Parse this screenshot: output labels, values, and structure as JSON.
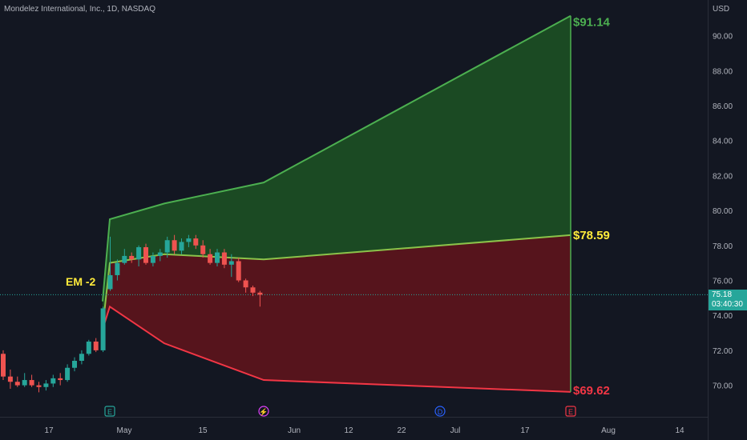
{
  "title": "Mondelez International, Inc., 1D, NASDAQ",
  "price_axis": {
    "unit": "USD",
    "ticks": [
      "70.00",
      "72.00",
      "74.00",
      "76.00",
      "78.00",
      "80.00",
      "82.00",
      "84.00",
      "86.00",
      "88.00",
      "90.00"
    ]
  },
  "time_axis": {
    "ticks": [
      "17",
      "May",
      "15",
      "Jun",
      "12",
      "22",
      "Jul",
      "17",
      "Aug",
      "14"
    ]
  },
  "last_price": {
    "value": "75.18",
    "countdown": "03:40:30",
    "color": "#26a69a"
  },
  "annotations": {
    "em_label": "EM -2",
    "upper_label": "$91.14",
    "mid_label": "$78.59",
    "lower_label": "$69.62"
  },
  "event_markers": [
    "E",
    "⚡",
    "D",
    "E"
  ],
  "colors": {
    "background": "#131722",
    "up": "#26a69a",
    "down": "#ef5350",
    "upper_band_line": "#4caf50",
    "upper_band_fill": "#1b4d24",
    "lower_band_line": "#f23645",
    "lower_band_fill": "#5a141c",
    "mid_line": "#8bc34a",
    "label_yellow": "#ffeb3b"
  },
  "chart_data": {
    "type": "candlestick",
    "symbol": "Mondelez International, Inc., 1D, NASDAQ",
    "yrange": [
      68,
      92
    ],
    "candles": [
      {
        "o": 71.8,
        "h": 72.0,
        "l": 70.3,
        "c": 70.5
      },
      {
        "o": 70.5,
        "h": 70.9,
        "l": 69.8,
        "c": 70.2
      },
      {
        "o": 70.2,
        "h": 70.5,
        "l": 69.9,
        "c": 70.0
      },
      {
        "o": 70.0,
        "h": 70.7,
        "l": 69.9,
        "c": 70.3
      },
      {
        "o": 70.3,
        "h": 70.6,
        "l": 69.9,
        "c": 70.0
      },
      {
        "o": 70.0,
        "h": 70.2,
        "l": 69.6,
        "c": 69.9
      },
      {
        "o": 69.9,
        "h": 70.3,
        "l": 69.7,
        "c": 70.1
      },
      {
        "o": 70.1,
        "h": 70.6,
        "l": 69.9,
        "c": 70.4
      },
      {
        "o": 70.4,
        "h": 70.7,
        "l": 70.0,
        "c": 70.3
      },
      {
        "o": 70.3,
        "h": 71.2,
        "l": 70.2,
        "c": 71.0
      },
      {
        "o": 71.0,
        "h": 71.6,
        "l": 70.8,
        "c": 71.4
      },
      {
        "o": 71.4,
        "h": 72.0,
        "l": 71.2,
        "c": 71.8
      },
      {
        "o": 71.8,
        "h": 72.6,
        "l": 71.7,
        "c": 72.5
      },
      {
        "o": 72.5,
        "h": 72.7,
        "l": 71.9,
        "c": 72.0
      },
      {
        "o": 72.0,
        "h": 74.5,
        "l": 71.9,
        "c": 74.4
      },
      {
        "o": 75.5,
        "h": 78.5,
        "l": 75.4,
        "c": 76.3
      },
      {
        "o": 76.3,
        "h": 77.2,
        "l": 76.0,
        "c": 77.0
      },
      {
        "o": 77.0,
        "h": 77.8,
        "l": 76.9,
        "c": 77.4
      },
      {
        "o": 77.4,
        "h": 77.6,
        "l": 77.0,
        "c": 77.2
      },
      {
        "o": 77.2,
        "h": 78.0,
        "l": 76.8,
        "c": 77.9
      },
      {
        "o": 77.9,
        "h": 78.1,
        "l": 76.9,
        "c": 77.0
      },
      {
        "o": 77.0,
        "h": 77.6,
        "l": 76.8,
        "c": 77.4
      },
      {
        "o": 77.4,
        "h": 77.8,
        "l": 77.1,
        "c": 77.6
      },
      {
        "o": 77.6,
        "h": 78.5,
        "l": 77.3,
        "c": 78.3
      },
      {
        "o": 78.3,
        "h": 78.6,
        "l": 77.5,
        "c": 77.7
      },
      {
        "o": 77.7,
        "h": 78.4,
        "l": 77.5,
        "c": 78.2
      },
      {
        "o": 78.2,
        "h": 78.6,
        "l": 77.9,
        "c": 78.4
      },
      {
        "o": 78.4,
        "h": 78.6,
        "l": 77.8,
        "c": 78.0
      },
      {
        "o": 78.0,
        "h": 78.3,
        "l": 77.3,
        "c": 77.5
      },
      {
        "o": 77.5,
        "h": 77.8,
        "l": 76.9,
        "c": 77.0
      },
      {
        "o": 77.0,
        "h": 77.8,
        "l": 76.8,
        "c": 77.6
      },
      {
        "o": 77.6,
        "h": 77.8,
        "l": 76.7,
        "c": 76.9
      },
      {
        "o": 76.9,
        "h": 77.5,
        "l": 76.2,
        "c": 77.1
      },
      {
        "o": 77.1,
        "h": 77.3,
        "l": 75.9,
        "c": 76.0
      },
      {
        "o": 76.0,
        "h": 76.1,
        "l": 75.3,
        "c": 75.6
      },
      {
        "o": 75.6,
        "h": 75.7,
        "l": 75.1,
        "c": 75.3
      },
      {
        "o": 75.3,
        "h": 75.4,
        "l": 74.5,
        "c": 75.18
      }
    ],
    "upper_band": [
      74.8,
      79.5,
      80.4,
      81.6,
      91.14
    ],
    "mid_band": [
      73.3,
      77.0,
      77.5,
      77.2,
      78.59
    ],
    "lower_band": [
      73.2,
      74.5,
      72.4,
      70.3,
      69.62
    ]
  }
}
